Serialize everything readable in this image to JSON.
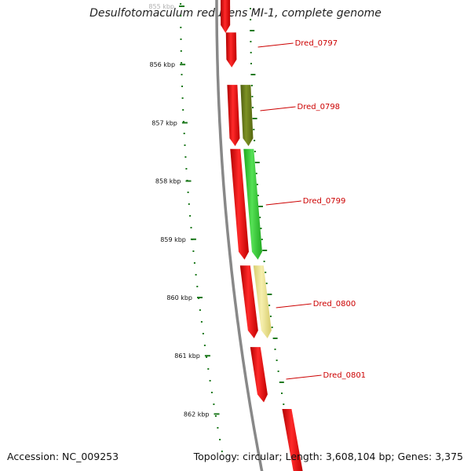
{
  "title": "Desulfotomaculum reducens MI-1, complete genome",
  "accession": "Accession: NC_009253",
  "summary": "Topology: circular; Length: 3,608,104 bp; Genes: 3,375",
  "ticks": [
    {
      "kbp": 855,
      "label": "855 kbp"
    },
    {
      "kbp": 856,
      "label": "856 kbp"
    },
    {
      "kbp": 857,
      "label": "857 kbp"
    },
    {
      "kbp": 858,
      "label": "858 kbp"
    },
    {
      "kbp": 859,
      "label": "859 kbp"
    },
    {
      "kbp": 860,
      "label": "860 kbp"
    },
    {
      "kbp": 861,
      "label": "861 kbp"
    },
    {
      "kbp": 862,
      "label": "862 kbp"
    }
  ],
  "genes": [
    {
      "name": "Dred_0797",
      "label": "Dred_0797",
      "start_kbp": 855.45,
      "end_kbp": 856.05,
      "color": "#ff0000",
      "ring_color": "#ff0000"
    },
    {
      "name": "Dred_0798",
      "label": "Dred_0798",
      "start_kbp": 856.35,
      "end_kbp": 857.4,
      "color": "#6b7f1a",
      "ring_color": "#ff0000"
    },
    {
      "name": "Dred_0799",
      "label": "Dred_0799",
      "start_kbp": 857.45,
      "end_kbp": 859.35,
      "color": "#33cc33",
      "ring_color": "#ff0000"
    },
    {
      "name": "Dred_0800",
      "label": "Dred_0800",
      "start_kbp": 859.45,
      "end_kbp": 860.7,
      "color": "#ede48e",
      "ring_color": "#ff0000"
    },
    {
      "name": "Dred_0801",
      "label": "Dred_0801",
      "start_kbp": 860.85,
      "end_kbp": 861.8,
      "color": "#ff0000",
      "ring_color": "#ff0000"
    }
  ],
  "colors": {
    "backbone": "#888888",
    "ticks": "#1f7a1f",
    "label_line": "#cc0000"
  }
}
